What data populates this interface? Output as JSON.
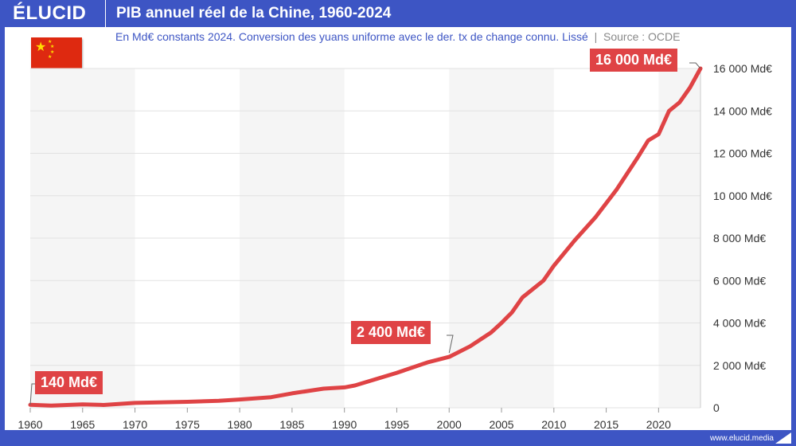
{
  "header": {
    "logo": "ÉLUCID",
    "title": "PIB annuel réel de la Chine, 1960-2024"
  },
  "subtitle": "En Md€ constants 2024. Conversion des yuans uniforme avec le der. tx de change connu. Lissé",
  "source": "Source : OCDE",
  "footer": "www.elucid.media",
  "colors": {
    "brand": "#3d55c4",
    "line": "#df4345",
    "band": "#f5f5f5"
  },
  "flag_icon": "china-flag",
  "chart_data": {
    "type": "line",
    "xlim": [
      1960,
      2024
    ],
    "ylim": [
      0,
      16000
    ],
    "x_ticks": [
      "1960",
      "1965",
      "1970",
      "1975",
      "1980",
      "1985",
      "1990",
      "1995",
      "2000",
      "2005",
      "2010",
      "2015",
      "2020"
    ],
    "y_ticks": [
      "0",
      "2 000 Md€",
      "4 000 Md€",
      "6 000 Md€",
      "8 000 Md€",
      "10 000 Md€",
      "12 000 Md€",
      "14 000 Md€",
      "16 000 Md€"
    ],
    "y_axis_position": "right",
    "grid": true,
    "shaded_decades": [
      [
        1960,
        1970
      ],
      [
        1980,
        1990
      ],
      [
        2000,
        2010
      ],
      [
        2020,
        2024
      ]
    ],
    "x": [
      1960,
      1962,
      1965,
      1967,
      1970,
      1975,
      1978,
      1980,
      1983,
      1985,
      1988,
      1990,
      1991,
      1995,
      1998,
      2000,
      2002,
      2004,
      2005,
      2006,
      2007,
      2009,
      2010,
      2012,
      2014,
      2016,
      2018,
      2019,
      2020,
      2021,
      2022,
      2023,
      2024
    ],
    "values": [
      140,
      100,
      160,
      130,
      230,
      280,
      330,
      390,
      500,
      680,
      900,
      960,
      1050,
      1650,
      2150,
      2400,
      2900,
      3550,
      4000,
      4500,
      5200,
      6000,
      6700,
      7900,
      9000,
      10300,
      11800,
      12600,
      12900,
      14000,
      14400,
      15100,
      16000
    ],
    "annotations": [
      {
        "x": 1960,
        "y": 140,
        "text": "140 Md€"
      },
      {
        "x": 2000,
        "y": 2400,
        "text": "2 400 Md€"
      },
      {
        "x": 2024,
        "y": 16000,
        "text": "16 000 Md€"
      }
    ]
  }
}
